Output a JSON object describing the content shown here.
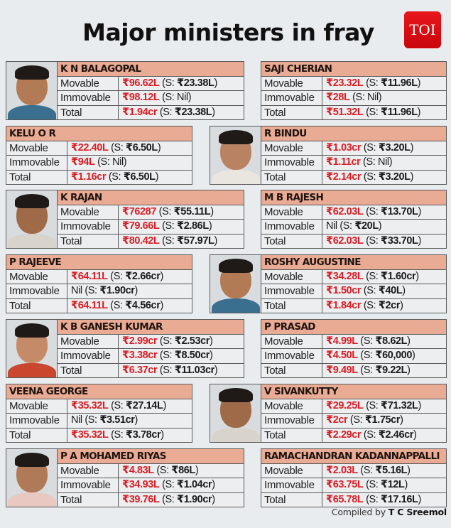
{
  "header": {
    "title": "Major ministers in fray",
    "logo_text": "TOI",
    "logo_color": "#e0121a"
  },
  "labels": {
    "movable": "Movable",
    "immovable": "Immovable",
    "total": "Total"
  },
  "ministers": [
    {
      "name": "K N BALAGOPAL",
      "has_photo": true,
      "movable": {
        "main": "₹96.62L",
        "spouse": "₹23.38L"
      },
      "immovable": {
        "main": "₹98.12L",
        "spouse": "Nil"
      },
      "total": {
        "main": "₹1.94cr",
        "spouse": "₹23.38L"
      }
    },
    {
      "name": "SAJI CHERIAN",
      "has_photo": false,
      "movable": {
        "main": "₹23.32L",
        "spouse": "₹11.96L"
      },
      "immovable": {
        "main": "₹28L",
        "spouse": "Nil"
      },
      "total": {
        "main": "₹51.32L",
        "spouse": "₹11.96L"
      }
    },
    {
      "name": "KELU O R",
      "has_photo": false,
      "movable": {
        "main": "₹22.40L",
        "spouse": "₹6.50L"
      },
      "immovable": {
        "main": "₹94L",
        "spouse": "Nil"
      },
      "total": {
        "main": "₹1.16cr",
        "spouse": "₹6.50L"
      }
    },
    {
      "name": "R BINDU",
      "has_photo": true,
      "movable": {
        "main": "₹1.03cr",
        "spouse": "₹3.20L"
      },
      "immovable": {
        "main": "₹1.11cr",
        "spouse": "Nil"
      },
      "total": {
        "main": "₹2.14cr",
        "spouse": "₹3.20L"
      }
    },
    {
      "name": "K RAJAN",
      "has_photo": true,
      "movable": {
        "main": "₹76287",
        "spouse": "₹55.11L"
      },
      "immovable": {
        "main": "₹79.66L",
        "spouse": "₹2.86L"
      },
      "total": {
        "main": "₹80.42L",
        "spouse": "₹57.97L"
      }
    },
    {
      "name": "M B RAJESH",
      "has_photo": false,
      "movable": {
        "main": "₹62.03L",
        "spouse": "₹13.70L"
      },
      "immovable": {
        "main": "Nil",
        "spouse": "₹20L"
      },
      "total": {
        "main": "₹62.03L",
        "spouse": "₹33.70L"
      }
    },
    {
      "name": "P RAJEEVE",
      "has_photo": false,
      "movable": {
        "main": "₹64.11L",
        "spouse": "₹2.66cr"
      },
      "immovable": {
        "main": "Nil",
        "spouse": "₹1.90cr"
      },
      "total": {
        "main": "₹64.11L",
        "spouse": "₹4.56cr"
      }
    },
    {
      "name": "ROSHY AUGUSTINE",
      "has_photo": true,
      "movable": {
        "main": "₹34.28L",
        "spouse": "₹1.60cr"
      },
      "immovable": {
        "main": "₹1.50cr",
        "spouse": "₹40L"
      },
      "total": {
        "main": "₹1.84cr",
        "spouse": "₹2cr"
      }
    },
    {
      "name": "K B GANESH KUMAR",
      "has_photo": true,
      "movable": {
        "main": "₹2.99cr",
        "spouse": "₹2.53cr"
      },
      "immovable": {
        "main": "₹3.38cr",
        "spouse": "₹8.50cr"
      },
      "total": {
        "main": "₹6.37cr",
        "spouse": "₹11.03cr"
      }
    },
    {
      "name": "P PRASAD",
      "has_photo": false,
      "movable": {
        "main": "₹4.99L",
        "spouse": "₹8.62L"
      },
      "immovable": {
        "main": "₹4.50L",
        "spouse": "₹60,000"
      },
      "total": {
        "main": "₹9.49L",
        "spouse": "₹9.22L"
      }
    },
    {
      "name": "VEENA GEORGE",
      "has_photo": false,
      "movable": {
        "main": "₹35.32L",
        "spouse": "₹27.14L"
      },
      "immovable": {
        "main": "Nil",
        "spouse": "₹3.51cr"
      },
      "total": {
        "main": "₹35.32L",
        "spouse": "₹3.78cr"
      }
    },
    {
      "name": "V SIVANKUTTY",
      "has_photo": true,
      "movable": {
        "main": "₹29.25L",
        "spouse": "₹71.32L"
      },
      "immovable": {
        "main": "₹2cr",
        "spouse": "₹1.75cr"
      },
      "total": {
        "main": "₹2.29cr",
        "spouse": "₹2.46cr"
      }
    },
    {
      "name": "P A MOHAMED RIYAS",
      "has_photo": true,
      "movable": {
        "main": "₹4.83L",
        "spouse": "₹86L"
      },
      "immovable": {
        "main": "₹34.93L",
        "spouse": "₹1.04cr"
      },
      "total": {
        "main": "₹39.76L",
        "spouse": "₹1.90cr"
      }
    },
    {
      "name": "RAMACHANDRAN KADANNAPPALLI",
      "has_photo": false,
      "movable": {
        "main": "₹2.03L",
        "spouse": "₹5.16L"
      },
      "immovable": {
        "main": "₹63.75L",
        "spouse": "₹12L"
      },
      "total": {
        "main": "₹65.78L",
        "spouse": "₹17.16L"
      }
    }
  ],
  "footer": {
    "credit_prefix": "Compiled by ",
    "credit_name": "T C Sreemol"
  },
  "colors": {
    "name_bar": "#e9ab93",
    "amount_red": "#d81f26",
    "background": "#e9ecef"
  }
}
